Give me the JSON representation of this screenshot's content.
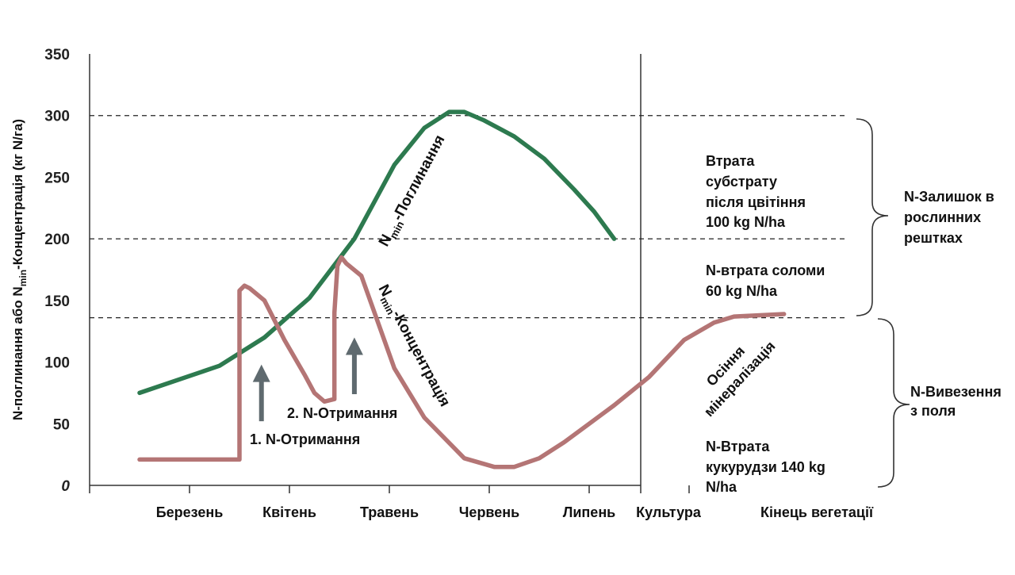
{
  "chart_data": {
    "type": "line",
    "ylabel": "N-поглинання або N",
    "ylabel_sub": "min",
    "ylabel_tail": "-Концентрація (кг N/га)",
    "ylim": [
      0,
      350
    ],
    "y_ticks": [
      "0",
      "50",
      "100",
      "150",
      "200",
      "250",
      "300",
      "350"
    ],
    "x_categories": [
      "Березень",
      "Квітень",
      "Травень",
      "Червень",
      "Липень",
      "Культура",
      "Кінець вегетації"
    ],
    "reference_lines": [
      300,
      200,
      136
    ],
    "series": [
      {
        "name": "N",
        "label_sub": "min",
        "label_tail": "-Поглинання",
        "color": "#2d7a4f",
        "points": [
          [
            0.5,
            75
          ],
          [
            1.3,
            97
          ],
          [
            1.75,
            120
          ],
          [
            2.2,
            152
          ],
          [
            2.65,
            200
          ],
          [
            3.05,
            260
          ],
          [
            3.35,
            290
          ],
          [
            3.6,
            303
          ],
          [
            3.75,
            303
          ],
          [
            3.95,
            296
          ],
          [
            4.25,
            283
          ],
          [
            4.55,
            265
          ],
          [
            4.85,
            240
          ],
          [
            5.05,
            222
          ],
          [
            5.25,
            200
          ]
        ]
      },
      {
        "name": "N",
        "label_sub": "min",
        "label_tail": "-Концентрація",
        "color": "#b47575",
        "points": [
          [
            0.5,
            21
          ],
          [
            1.5,
            21
          ],
          [
            1.5,
            158
          ],
          [
            1.55,
            162
          ],
          [
            1.6,
            160
          ],
          [
            1.75,
            150
          ],
          [
            1.95,
            118
          ],
          [
            2.15,
            90
          ],
          [
            2.25,
            75
          ],
          [
            2.35,
            68
          ],
          [
            2.45,
            70
          ],
          [
            2.45,
            140
          ],
          [
            2.48,
            178
          ],
          [
            2.52,
            185
          ],
          [
            2.57,
            180
          ],
          [
            2.72,
            170
          ],
          [
            3.05,
            95
          ],
          [
            3.35,
            55
          ],
          [
            3.75,
            22
          ],
          [
            4.05,
            15
          ],
          [
            4.25,
            15
          ],
          [
            4.5,
            22
          ],
          [
            4.75,
            35
          ],
          [
            5.0,
            50
          ],
          [
            5.25,
            65
          ],
          [
            5.6,
            88
          ],
          [
            5.95,
            118
          ],
          [
            6.25,
            132
          ],
          [
            6.45,
            137
          ],
          [
            6.95,
            139
          ]
        ]
      }
    ],
    "arrows": [
      {
        "x": 1.72,
        "y_from": 52,
        "y_to": 98,
        "label": "1. N-Отримання"
      },
      {
        "x": 2.65,
        "y_from": 74,
        "y_to": 120,
        "label": "2. N-Отримання"
      }
    ],
    "annotations": {
      "autumn": [
        "Осіння",
        "мінералізація"
      ],
      "substrate_loss": [
        "Втрата",
        "субстрату",
        "після цвітіння",
        "100 kg N/ha"
      ],
      "straw_loss": [
        "N-втрата соломи",
        "60 kg N/ha"
      ],
      "corn_loss": [
        "N-Втрата",
        "кукурудзи 140 kg",
        "N/ha"
      ],
      "residue": [
        "N-Залишок в",
        "рослинних",
        "рештках"
      ],
      "removal": [
        "N-Вивезення",
        "з поля"
      ]
    }
  }
}
